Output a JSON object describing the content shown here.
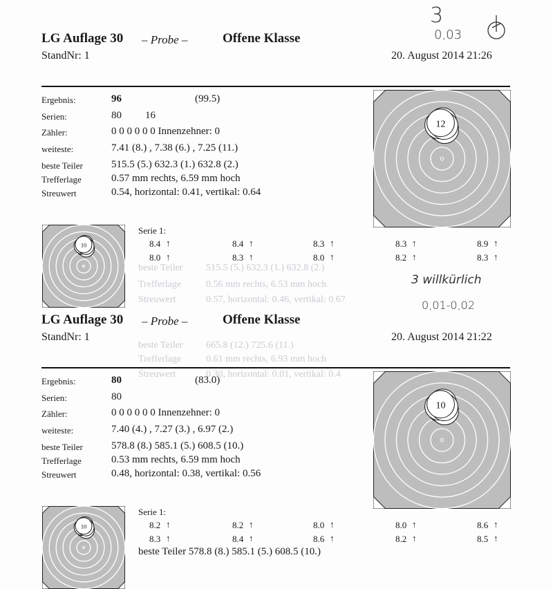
{
  "handwritten": {
    "top": [
      "3",
      "0,03"
    ],
    "middle": [
      "3 willkürlich",
      "0,01-0,02"
    ]
  },
  "ghost_text": [
    [
      "beste Teiler",
      "515.5 (5.)  632.3 (1.)  632.8 (2.)"
    ],
    [
      "Trefferlage",
      "0.56 mm rechts,  6.53 mm hoch"
    ],
    [
      "Streuwert",
      "0.57,  horizontal: 0.46,  vertikal: 0.67"
    ],
    [
      "beste Teiler",
      "665.8 (12.)  725.6 (11.)"
    ],
    [
      "Trefferlage",
      "0.61 mm rechts,  6.93 mm hoch"
    ],
    [
      "Streuwert",
      "0.30,  horizontal: 0.01,  vertikal: 0.4"
    ]
  ],
  "sections": [
    {
      "title": "LG Auflage 30",
      "probe": "– Probe –",
      "klasse": "Offene Klasse",
      "stand": "StandNr: 1",
      "datetime": "20. August 2014  21:26",
      "rows": [
        {
          "label": "Ergebnis:",
          "value": "96",
          "extra": "(99.5)"
        },
        {
          "label": "Serien:",
          "value": "80",
          "extra": "16"
        },
        {
          "label": "Zähler:",
          "value": "0    0    0    0    0    0    Innenzehner: 0"
        },
        {
          "label": "weiteste:",
          "value": "7.41 (8.) , 7.38 (6.) , 7.25 (11.)"
        },
        {
          "label": "beste Teiler",
          "value": "515.5 (5.)  632.3 (1.)  632.8 (2.)"
        },
        {
          "label": "Trefferlage",
          "value": "0.57 mm rechts,  6.59 mm hoch"
        },
        {
          "label": "Streuwert",
          "value": "0.54,  horizontal: 0.41,  vertikal: 0.64"
        }
      ],
      "target_label": "12",
      "small_target_label": "10",
      "serie_label": "Serie 1:",
      "serie_rows": [
        [
          "8.4",
          "8.4",
          "8.3",
          "8.3",
          "8.9"
        ],
        [
          "8.0",
          "8.3",
          "8.0",
          "8.2",
          "8.3"
        ]
      ]
    },
    {
      "title": "LG Auflage 30",
      "probe": "– Probe –",
      "klasse": "Offene Klasse",
      "stand": "StandNr: 1",
      "datetime": "20. August 2014  21:22",
      "rows": [
        {
          "label": "Ergebnis:",
          "value": "80",
          "extra": "(83.0)"
        },
        {
          "label": "Serien:",
          "value": "80",
          "extra": ""
        },
        {
          "label": "Zähler:",
          "value": "0    0    0    0    0    0    Innenzehner: 0"
        },
        {
          "label": "weiteste:",
          "value": "7.40 (4.) , 7.27 (3.) , 6.97 (2.)"
        },
        {
          "label": "beste Teiler",
          "value": "578.8 (8.)  585.1 (5.)  608.5 (10.)"
        },
        {
          "label": "Trefferlage",
          "value": "0.53 mm rechts,  6.59 mm hoch"
        },
        {
          "label": "Streuwert",
          "value": "0.48,  horizontal: 0.38,  vertikal: 0.56"
        }
      ],
      "target_label": "10",
      "small_target_label": "10",
      "serie_label": "Serie 1:",
      "serie_rows": [
        [
          "8.2",
          "8.2",
          "8.0",
          "8.0",
          "8.6"
        ],
        [
          "8.3",
          "8.4",
          "8.6",
          "8.2",
          "8.5"
        ]
      ],
      "cut_off_text": "beste Teiler        578.8 (8.)  585.1 (5.)  608.5 (10.)"
    }
  ]
}
